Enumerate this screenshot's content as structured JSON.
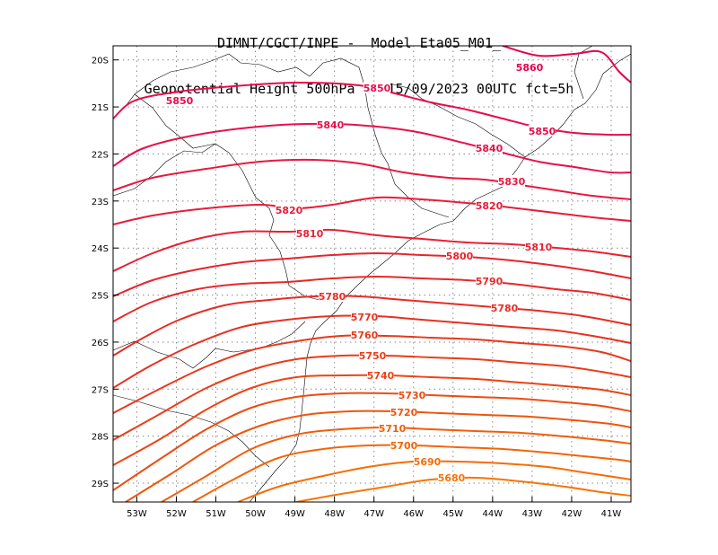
{
  "title": {
    "line1": "DIMNT/CGCT/INPE -  Model Eta05_M01_",
    "line2": "Geopotential Height 500hPa -  15/09/2023 00UTC fct=5h"
  },
  "axes": {
    "lon_labels": [
      "53W",
      "52W",
      "51W",
      "50W",
      "49W",
      "48W",
      "47W",
      "46W",
      "45W",
      "44W",
      "43W",
      "42W",
      "41W"
    ],
    "lat_labels": [
      "20S",
      "21S",
      "22S",
      "23S",
      "24S",
      "25S",
      "26S",
      "27S",
      "28S",
      "29S"
    ],
    "lon_range": [
      -53.6,
      -40.5
    ],
    "lat_range": [
      -29.4,
      -19.7
    ],
    "grid": true
  },
  "contours": {
    "variable": "Geopotential Height 500hPa",
    "interval": 10,
    "lines": [
      {
        "value": 5860,
        "color": "#e8004a",
        "labels": [
          "5860"
        ]
      },
      {
        "value": 5850,
        "color": "#e80c4a",
        "labels": [
          "5850",
          "5850",
          "5850"
        ]
      },
      {
        "value": 5840,
        "color": "#e8104a",
        "labels": [
          "5840",
          "5840"
        ]
      },
      {
        "value": 5830,
        "color": "#e81840",
        "labels": [
          "5830"
        ]
      },
      {
        "value": 5820,
        "color": "#e81c3a",
        "labels": [
          "5820",
          "5820"
        ]
      },
      {
        "value": 5810,
        "color": "#e82034",
        "labels": [
          "5810",
          "5810"
        ]
      },
      {
        "value": 5800,
        "color": "#e8242c",
        "labels": [
          "5800"
        ]
      },
      {
        "value": 5790,
        "color": "#e82828",
        "labels": [
          "5790"
        ]
      },
      {
        "value": 5780,
        "color": "#e82c24",
        "labels": [
          "5780",
          "5780"
        ]
      },
      {
        "value": 5770,
        "color": "#e83020",
        "labels": [
          "5770"
        ]
      },
      {
        "value": 5760,
        "color": "#e8381c",
        "labels": [
          "5760"
        ]
      },
      {
        "value": 5750,
        "color": "#ec3c18",
        "labels": [
          "5750"
        ]
      },
      {
        "value": 5740,
        "color": "#ec4414",
        "labels": [
          "5740"
        ]
      },
      {
        "value": 5730,
        "color": "#ee4c10",
        "labels": [
          "5730"
        ]
      },
      {
        "value": 5720,
        "color": "#f0540c",
        "labels": [
          "5720"
        ]
      },
      {
        "value": 5710,
        "color": "#f25c0a",
        "labels": [
          "5710"
        ]
      },
      {
        "value": 5700,
        "color": "#f46408",
        "labels": [
          "5700"
        ]
      },
      {
        "value": 5690,
        "color": "#f66c06",
        "labels": [
          "5690"
        ]
      },
      {
        "value": 5680,
        "color": "#f87404",
        "labels": [
          "5680"
        ]
      }
    ]
  },
  "colors": {
    "grid": "#888888",
    "coast": "#000000",
    "frame": "#000000"
  }
}
